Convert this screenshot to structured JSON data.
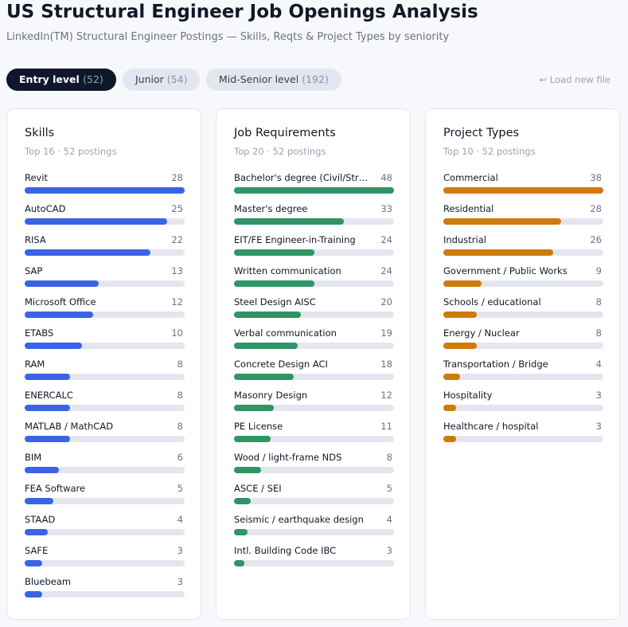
{
  "header": {
    "title": "US Structural Engineer Job Openings Analysis",
    "subtitle": "LinkedIn(TM) Structural Engineer Postings — Skills, Reqts & Project Types by seniority"
  },
  "tabs": [
    {
      "label": "Entry level",
      "count": "(52)",
      "active": true
    },
    {
      "label": "Junior",
      "count": "(54)",
      "active": false
    },
    {
      "label": "Mid-Senior level",
      "count": "(192)",
      "active": false
    }
  ],
  "load_button": "↩ Load new file",
  "panels": [
    {
      "title": "Skills",
      "subtitle": "Top 16 · 52 postings",
      "color": "#3b63e6",
      "items": [
        {
          "label": "Revit",
          "value": 28
        },
        {
          "label": "AutoCAD",
          "value": 25
        },
        {
          "label": "RISA",
          "value": 22
        },
        {
          "label": "SAP",
          "value": 13
        },
        {
          "label": "Microsoft Office",
          "value": 12
        },
        {
          "label": "ETABS",
          "value": 10
        },
        {
          "label": "RAM",
          "value": 8
        },
        {
          "label": "ENERCALC",
          "value": 8
        },
        {
          "label": "MATLAB / MathCAD",
          "value": 8
        },
        {
          "label": "BIM",
          "value": 6
        },
        {
          "label": "FEA Software",
          "value": 5
        },
        {
          "label": "STAAD",
          "value": 4
        },
        {
          "label": "SAFE",
          "value": 3
        },
        {
          "label": "Bluebeam",
          "value": 3
        }
      ]
    },
    {
      "title": "Job Requirements",
      "subtitle": "Top 20 · 52 postings",
      "color": "#2f9466",
      "items": [
        {
          "label": "Bachelor's degree (Civil/Str…",
          "value": 48
        },
        {
          "label": "Master's degree",
          "value": 33
        },
        {
          "label": "EIT/FE Engineer-in-Training",
          "value": 24
        },
        {
          "label": "Written communication",
          "value": 24
        },
        {
          "label": "Steel Design AISC",
          "value": 20
        },
        {
          "label": "Verbal communication",
          "value": 19
        },
        {
          "label": "Concrete Design ACI",
          "value": 18
        },
        {
          "label": "Masonry Design",
          "value": 12
        },
        {
          "label": "PE License",
          "value": 11
        },
        {
          "label": "Wood / light-frame NDS",
          "value": 8
        },
        {
          "label": "ASCE / SEI",
          "value": 5
        },
        {
          "label": "Seismic / earthquake design",
          "value": 4
        },
        {
          "label": "Intl. Building Code IBC",
          "value": 3
        }
      ]
    },
    {
      "title": "Project Types",
      "subtitle": "Top 10 · 52 postings",
      "color": "#d07a0a",
      "items": [
        {
          "label": "Commercial",
          "value": 38
        },
        {
          "label": "Residential",
          "value": 28
        },
        {
          "label": "Industrial",
          "value": 26
        },
        {
          "label": "Government / Public Works",
          "value": 9
        },
        {
          "label": "Schools / educational",
          "value": 8
        },
        {
          "label": "Energy / Nuclear",
          "value": 8
        },
        {
          "label": "Transportation / Bridge",
          "value": 4
        },
        {
          "label": "Hospitality",
          "value": 3
        },
        {
          "label": "Healthcare / hospital",
          "value": 3
        }
      ]
    }
  ]
}
